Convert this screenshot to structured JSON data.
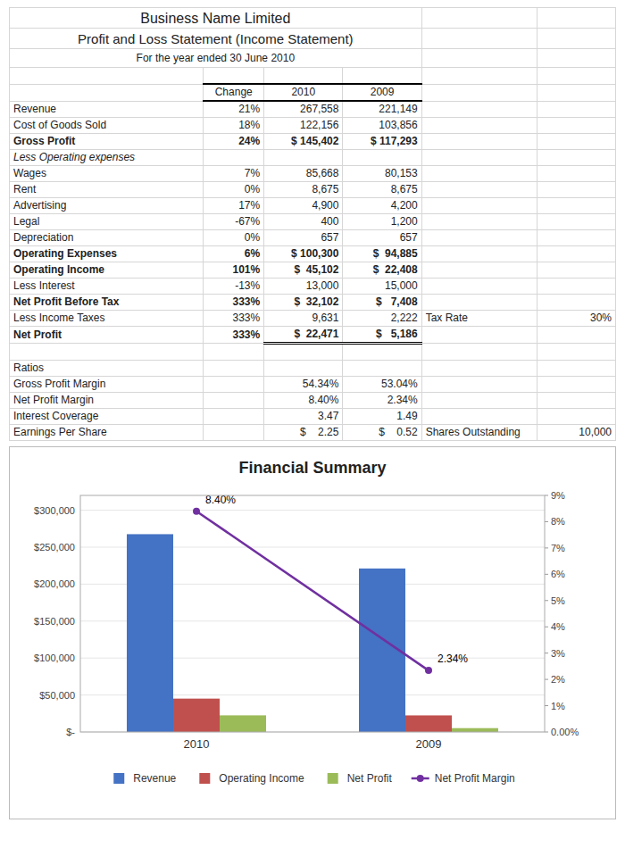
{
  "table": {
    "title": "Business Name Limited",
    "heading": "Profit and Loss Statement (Income Statement)",
    "subtitle": "For the year ended 30 June 2010",
    "columns": [
      "Change",
      "2010",
      "2009"
    ],
    "rows": [
      {
        "label": "Revenue",
        "change": "21%",
        "v2010": "267,558",
        "v2009": "221,149"
      },
      {
        "label": "Cost of Goods Sold",
        "change": "18%",
        "v2010": "122,156",
        "v2009": "103,856"
      },
      {
        "label": "Gross Profit",
        "bold": true,
        "change": "24%",
        "v2010": "$ 145,402",
        "v2009": "$ 117,293"
      },
      {
        "label": "Less Operating expenses",
        "italic": true
      },
      {
        "label": "Wages",
        "change": "7%",
        "v2010": "85,668",
        "v2009": "80,153"
      },
      {
        "label": "Rent",
        "change": "0%",
        "v2010": "8,675",
        "v2009": "8,675"
      },
      {
        "label": "Advertising",
        "change": "17%",
        "v2010": "4,900",
        "v2009": "4,200"
      },
      {
        "label": "Legal",
        "change": "-67%",
        "v2010": "400",
        "v2009": "1,200"
      },
      {
        "label": "Depreciation",
        "change": "0%",
        "v2010": "657",
        "v2009": "657"
      },
      {
        "label": "Operating Expenses",
        "bold": true,
        "change": "6%",
        "v2010": "$ 100,300",
        "v2009": "$  94,885"
      },
      {
        "label": "Operating Income",
        "bold": true,
        "change": "101%",
        "v2010": "$  45,102",
        "v2009": "$  22,408"
      },
      {
        "label": "Less Interest",
        "change": "-13%",
        "v2010": "13,000",
        "v2009": "15,000"
      },
      {
        "label": "Net Profit Before Tax",
        "bold": true,
        "change": "333%",
        "v2010": "$  32,102",
        "v2009": "$   7,408"
      },
      {
        "label": "Less Income Taxes",
        "change": "333%",
        "v2010": "9,631",
        "v2009": "2,222",
        "note": "Tax Rate",
        "note_value": "30%"
      },
      {
        "label": "Net Profit",
        "bold": true,
        "change": "333%",
        "v2010": "$  22,471",
        "v2009": "$   5,186"
      }
    ],
    "ratios_title": "Ratios",
    "ratios": [
      {
        "label": "Gross Profit Margin",
        "v2010": "54.34%",
        "v2009": "53.04%"
      },
      {
        "label": "Net Profit Margin",
        "v2010": "8.40%",
        "v2009": "2.34%"
      },
      {
        "label": "Interest Coverage",
        "v2010": "3.47",
        "v2009": "1.49"
      },
      {
        "label": "Earnings Per Share",
        "v2010": "$    2.25",
        "v2009": "$    0.52",
        "note": "Shares Outstanding",
        "note_value": "10,000"
      }
    ]
  },
  "chart_data": {
    "type": "bar",
    "title": "Financial Summary",
    "categories": [
      "2010",
      "2009"
    ],
    "series": [
      {
        "name": "Revenue",
        "color": "#4472C4",
        "values": [
          267558,
          221149
        ]
      },
      {
        "name": "Operating Income",
        "color": "#C0504D",
        "values": [
          45102,
          22408
        ]
      },
      {
        "name": "Net Profit",
        "color": "#9BBB59",
        "values": [
          22471,
          5186
        ]
      },
      {
        "name": "Net Profit Margin",
        "type": "line",
        "axis": "y2",
        "color": "#7030A0",
        "marker": "circle",
        "values": [
          8.4,
          2.34
        ],
        "value_labels": [
          "8.40%",
          "2.34%"
        ],
        "data_labels": true
      }
    ],
    "ylim": [
      0,
      320000
    ],
    "yticks": [
      {
        "value": 0,
        "label": "$-"
      },
      {
        "value": 50000,
        "label": "$50,000"
      },
      {
        "value": 100000,
        "label": "$100,000"
      },
      {
        "value": 150000,
        "label": "$150,000"
      },
      {
        "value": 200000,
        "label": "$200,000"
      },
      {
        "value": 250000,
        "label": "$250,000"
      },
      {
        "value": 300000,
        "label": "$300,000"
      }
    ],
    "y2lim": [
      0,
      9
    ],
    "y2ticks": [
      {
        "value": 0,
        "label": "0.00%"
      },
      {
        "value": 1,
        "label": "1%"
      },
      {
        "value": 2,
        "label": "2%"
      },
      {
        "value": 3,
        "label": "3%"
      },
      {
        "value": 4,
        "label": "4%"
      },
      {
        "value": 5,
        "label": "5%"
      },
      {
        "value": 6,
        "label": "6%"
      },
      {
        "value": 7,
        "label": "7%"
      },
      {
        "value": 8,
        "label": "8%"
      },
      {
        "value": 9,
        "label": "9%"
      }
    ],
    "grid": true,
    "legend": "bottom"
  }
}
